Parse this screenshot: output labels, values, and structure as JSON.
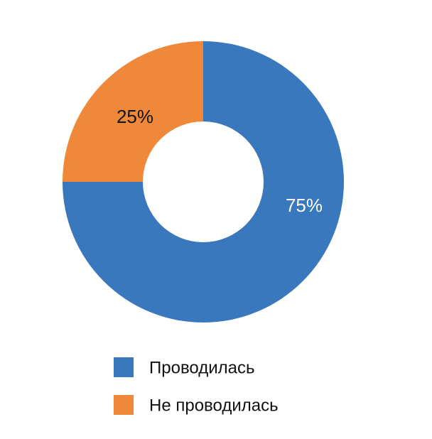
{
  "chart_data": {
    "type": "donut",
    "categories": [
      "Проводилась",
      "Не проводилась"
    ],
    "values": [
      75,
      25
    ],
    "value_labels": [
      "75%",
      "25%"
    ],
    "colors": [
      "#3a78bd",
      "#f0883a"
    ],
    "label_colors": [
      "#ffffff",
      "#111111"
    ],
    "legend": "bottom"
  }
}
